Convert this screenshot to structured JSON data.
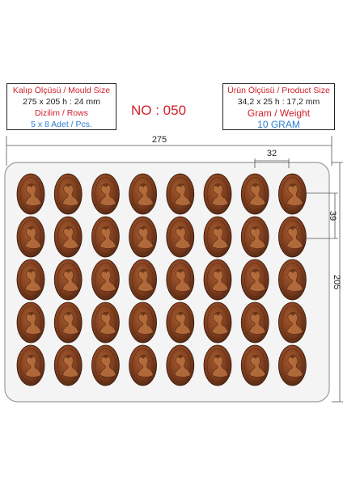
{
  "mould_box": {
    "title": "Kalıp Ölçüsü / Mould Size",
    "dimensions": "275 x 205 h : 24 mm",
    "rows_label": "Dizilim / Rows",
    "count": "5 x 8 Adet / Pcs."
  },
  "product_box": {
    "title": "Ürün Ölçüsü / Product Size",
    "dimensions": "34,2 x 25 h : 17,2 mm",
    "weight_label": "Gram / Weight",
    "weight": "10 GRAM"
  },
  "model_number": "NO : 050",
  "dimensions": {
    "width": "275",
    "height": "205",
    "cavity_width": "32",
    "cavity_height": "39"
  },
  "grid": {
    "rows": 5,
    "cols": 8
  },
  "colors": {
    "accent_red": "#d0202a",
    "accent_blue": "#2a7fd0",
    "chocolate": "#7a3a1c",
    "chocolate_light": "#a0542a",
    "tray": "#f2f2f2"
  }
}
